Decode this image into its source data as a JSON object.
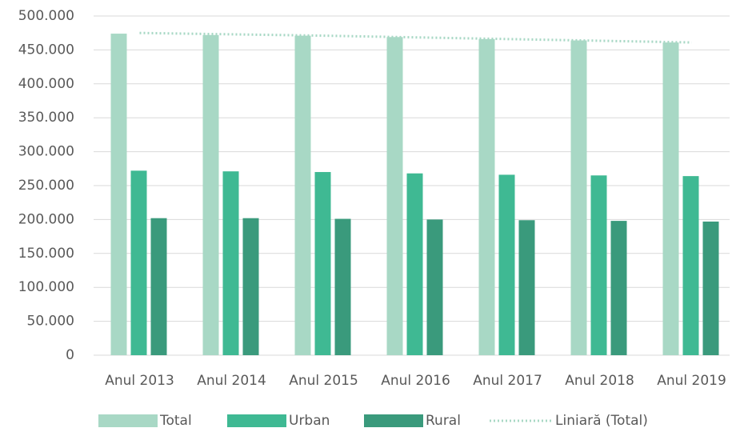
{
  "chart_data": {
    "type": "bar",
    "categories": [
      "Anul 2013",
      "Anul 2014",
      "Anul 2015",
      "Anul 2016",
      "Anul 2017",
      "Anul 2018",
      "Anul 2019"
    ],
    "series": [
      {
        "name": "Total",
        "color": "#a8d8c5",
        "values": [
          474000,
          472000,
          471000,
          469000,
          466000,
          464000,
          461000
        ]
      },
      {
        "name": "Urban",
        "color": "#3fb993",
        "values": [
          272000,
          271000,
          270000,
          268000,
          266000,
          265000,
          264000
        ]
      },
      {
        "name": "Rural",
        "color": "#3a9a7c",
        "values": [
          202000,
          202000,
          201000,
          200000,
          199000,
          198000,
          197000
        ]
      },
      {
        "name": "Liniară (Total)",
        "color": "#a8d8c5",
        "line": true,
        "values": [
          475000,
          473000,
          471000,
          468500,
          466000,
          463500,
          461000
        ]
      }
    ],
    "ylim": [
      0,
      500000
    ],
    "yticks": [
      0,
      {
        "value": 50000,
        "label": "50.000"
      },
      {
        "value": 100000,
        "label": "100.000"
      },
      {
        "value": 150000,
        "label": "150.000"
      },
      {
        "value": 200000,
        "label": "200.000"
      },
      {
        "value": 250000,
        "label": "250.000"
      },
      {
        "value": 300000,
        "label": "300.000"
      },
      {
        "value": 350000,
        "label": "350.000"
      },
      {
        "value": 400000,
        "label": "400.000"
      },
      {
        "value": 450000,
        "label": "450.000"
      },
      {
        "value": 500000,
        "label": "500.000"
      }
    ],
    "grid": true,
    "legend": "bottom"
  }
}
